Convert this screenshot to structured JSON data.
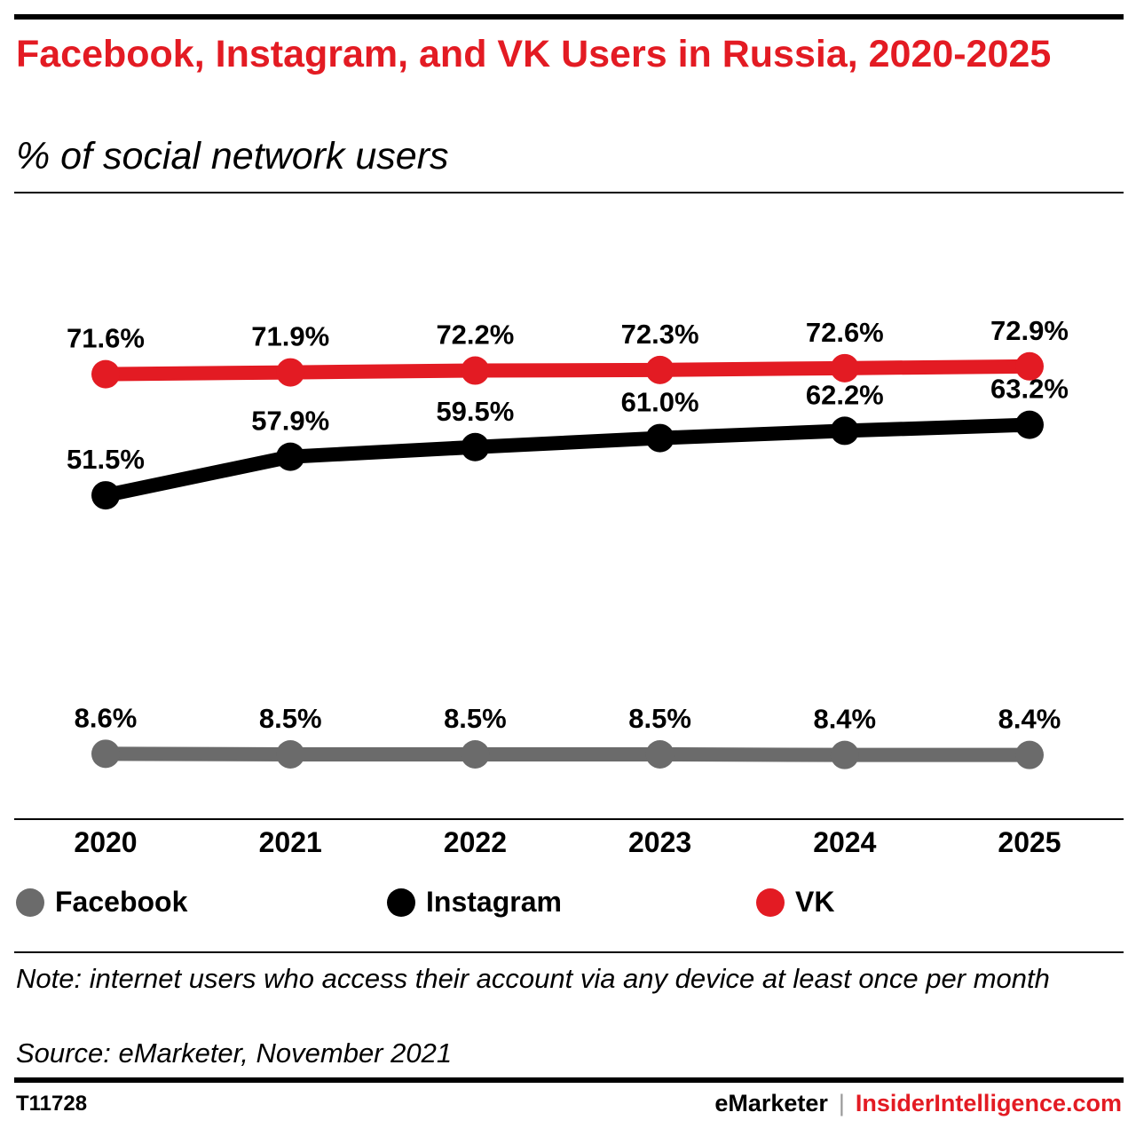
{
  "header": {
    "title": "Facebook, Instagram, and VK Users in Russia, 2020-2025",
    "subtitle": "% of social network users"
  },
  "colors": {
    "facebook": "#6b6b6b",
    "instagram": "#000000",
    "vk": "#e31b23",
    "title": "#e31b23"
  },
  "chart_data": {
    "type": "line",
    "title": "Facebook, Instagram, and VK Users in Russia, 2020-2025",
    "subtitle": "% of social network users",
    "x": [
      "2020",
      "2021",
      "2022",
      "2023",
      "2024",
      "2025"
    ],
    "ylim": [
      0,
      80
    ],
    "grid": false,
    "legend": "bottom",
    "series": [
      {
        "name": "Facebook",
        "color": "#6b6b6b",
        "values": [
          8.6,
          8.5,
          8.5,
          8.5,
          8.4,
          8.4
        ],
        "labels": [
          "8.6%",
          "8.5%",
          "8.5%",
          "8.5%",
          "8.4%",
          "8.4%"
        ]
      },
      {
        "name": "Instagram",
        "color": "#000000",
        "values": [
          51.5,
          57.9,
          59.5,
          61.0,
          62.2,
          63.2
        ],
        "labels": [
          "51.5%",
          "57.9%",
          "59.5%",
          "61.0%",
          "62.2%",
          "63.2%"
        ]
      },
      {
        "name": "VK",
        "color": "#e31b23",
        "values": [
          71.6,
          71.9,
          72.2,
          72.3,
          72.6,
          72.9
        ],
        "labels": [
          "71.6%",
          "71.9%",
          "72.2%",
          "72.3%",
          "72.6%",
          "72.9%"
        ]
      }
    ]
  },
  "legend": {
    "facebook": "Facebook",
    "instagram": "Instagram",
    "vk": "VK"
  },
  "footer": {
    "note": "Note: internet users who access their account via any device at least once per month",
    "source": "Source: eMarketer, November 2021",
    "chart_id": "T11728",
    "brand_emarketer": "eMarketer",
    "separator": "|",
    "brand_insider": "InsiderIntelligence.com"
  }
}
